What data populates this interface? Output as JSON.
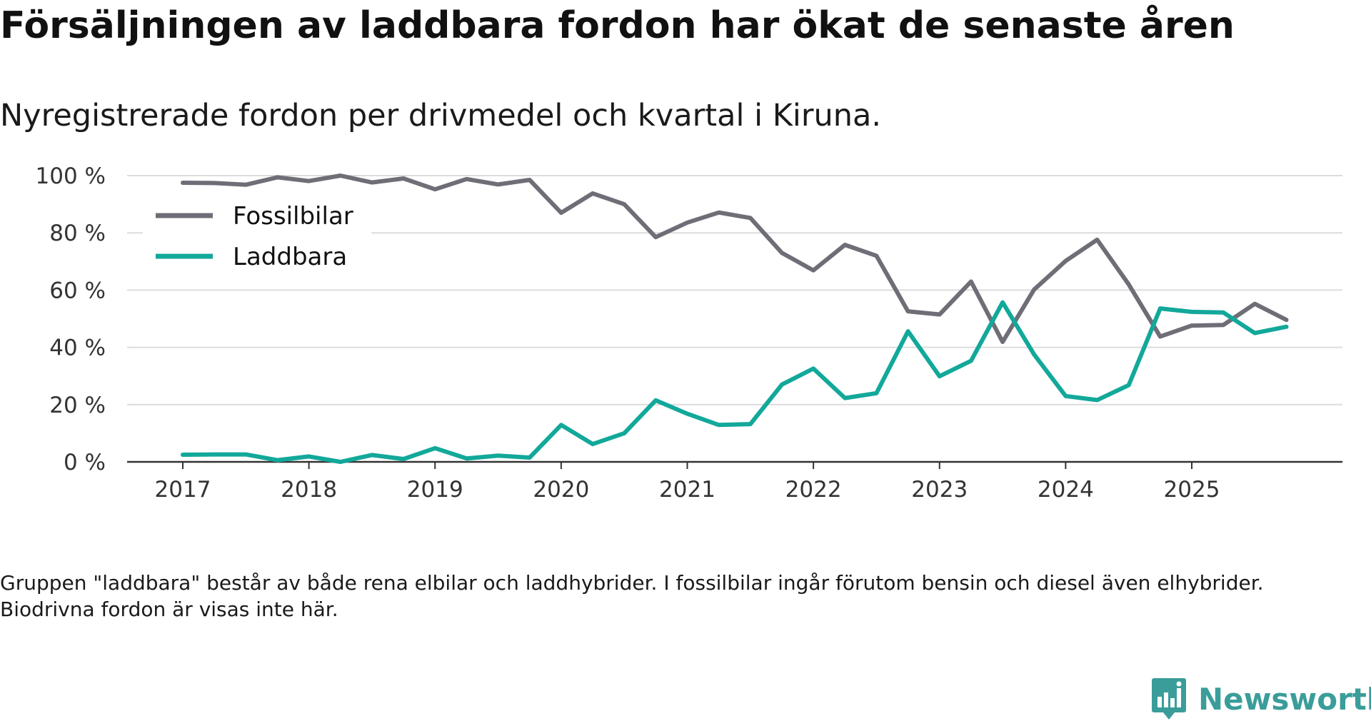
{
  "header": {
    "title": "Försäljningen av laddbara fordon har ökat de senaste åren",
    "subtitle": "Nyregistrerade fordon per drivmedel och kvartal i Kiruna."
  },
  "footnote": "Gruppen \"laddbara\" består av både rena elbilar och laddhybrider. I fossilbilar ingår förutom bensin och diesel även elhybrider. Biodrivna fordon är visas inte här.",
  "brand": {
    "name": "Newsworthy",
    "color": "#3a9d9a"
  },
  "chart_data": {
    "type": "line",
    "title": "Försäljningen av laddbara fordon har ökat de senaste åren",
    "xlabel": "",
    "ylabel": "",
    "ylim": [
      0,
      100
    ],
    "yticks": [
      0,
      20,
      40,
      60,
      80,
      100
    ],
    "ytick_labels": [
      "0 %",
      "20 %",
      "40 %",
      "60 %",
      "80 %",
      "100 %"
    ],
    "xlim": [
      2016.55,
      2026.2
    ],
    "xticks": [
      2017,
      2018,
      2019,
      2020,
      2021,
      2022,
      2023,
      2024,
      2025
    ],
    "xtick_labels": [
      "2017",
      "2018",
      "2019",
      "2020",
      "2021",
      "2022",
      "2023",
      "2024",
      "2025"
    ],
    "grid": true,
    "legend": "top-left",
    "x": [
      2017.0,
      2017.25,
      2017.5,
      2017.75,
      2018.0,
      2018.25,
      2018.5,
      2018.75,
      2019.0,
      2019.25,
      2019.5,
      2019.75,
      2020.0,
      2020.25,
      2020.5,
      2020.75,
      2021.0,
      2021.25,
      2021.5,
      2021.75,
      2022.0,
      2022.25,
      2022.5,
      2022.75,
      2023.0,
      2023.25,
      2023.5,
      2023.75,
      2024.0,
      2024.25,
      2024.5,
      2024.75,
      2025.0,
      2025.25,
      2025.5,
      2025.75
    ],
    "series": [
      {
        "name": "Fossilbilar",
        "color": "#6f6e77",
        "values": [
          97.5,
          97.4,
          96.8,
          99.4,
          98.1,
          100.0,
          97.6,
          99.0,
          95.2,
          98.8,
          96.9,
          98.5,
          87.0,
          93.8,
          90.0,
          78.5,
          83.6,
          87.1,
          85.2,
          73.0,
          66.9,
          75.8,
          72.0,
          52.6,
          51.5,
          63.0,
          41.9,
          60.2,
          70.2,
          77.6,
          62.0,
          43.8,
          47.6,
          47.8,
          55.2,
          49.6
        ]
      },
      {
        "name": "Laddbara",
        "color": "#12a89a",
        "values": [
          2.5,
          2.6,
          2.6,
          0.6,
          1.9,
          0.0,
          2.4,
          1.0,
          4.8,
          1.2,
          2.2,
          1.5,
          12.9,
          6.2,
          10.0,
          21.5,
          16.8,
          12.9,
          13.2,
          27.0,
          32.6,
          22.3,
          24.0,
          45.6,
          29.9,
          35.3,
          55.7,
          37.5,
          23.0,
          21.6,
          26.8,
          53.6,
          52.4,
          52.2,
          45.0,
          47.2
        ]
      }
    ]
  }
}
